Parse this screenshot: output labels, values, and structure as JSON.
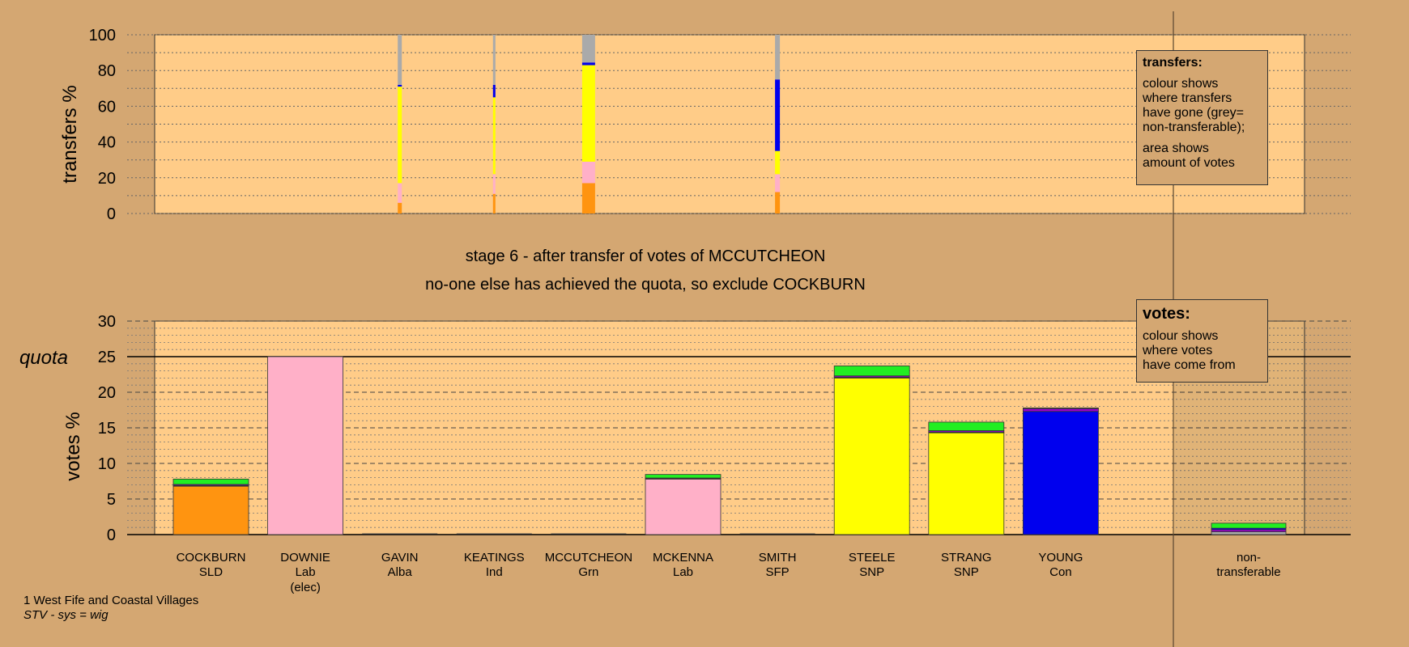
{
  "colors": {
    "background": "#d4a772",
    "plot_bg": "#ffcc88",
    "SLD": "#ff9410",
    "Lab": "#ffb0c8",
    "SNP": "#ffff00",
    "Con": "#0000ee",
    "Alba": "#22ee22",
    "Ind": "#9900cc",
    "nontransferable": "#aaaaaa"
  },
  "top_axis": {
    "title": "transfers %",
    "ticks": [
      "0",
      "20",
      "40",
      "60",
      "80",
      "100"
    ]
  },
  "bottom_axis": {
    "title": "votes %",
    "quota_label": "quota",
    "ticks": [
      "0",
      "5",
      "10",
      "15",
      "20",
      "25",
      "30"
    ]
  },
  "stage": {
    "line1": "stage 6 - after transfer of votes of MCCUTCHEON",
    "line2": "no-one else has achieved the quota, so exclude COCKBURN"
  },
  "legend_transfers": {
    "title": "transfers:",
    "lines": [
      "colour shows",
      "where transfers",
      "have gone (grey=",
      "non-transferable);"
    ],
    "lines2": [
      "area shows",
      "amount of votes"
    ]
  },
  "legend_votes": {
    "title": "votes:",
    "lines": [
      "colour shows",
      "where votes",
      "have come from"
    ]
  },
  "footer": {
    "line1": "1 West Fife and Coastal Villages",
    "line2": "STV - sys = wig"
  },
  "chart_data": [
    {
      "type": "bar",
      "title": "transfers",
      "ylabel": "transfers %",
      "ylim": [
        0,
        100
      ],
      "grid": true,
      "bars": [
        {
          "x": "GAVIN",
          "segments": [
            {
              "party": "SLD",
              "value": 6
            },
            {
              "party": "Lab",
              "value": 11
            },
            {
              "party": "SNP",
              "value": 54
            },
            {
              "party": "Con",
              "value": 1
            },
            {
              "party": "nontransferable",
              "value": 28
            }
          ]
        },
        {
          "x": "KEATINGS",
          "segments": [
            {
              "party": "SLD",
              "value": 11
            },
            {
              "party": "Lab",
              "value": 11
            },
            {
              "party": "SNP",
              "value": 43
            },
            {
              "party": "Con",
              "value": 7
            },
            {
              "party": "nontransferable",
              "value": 28
            }
          ]
        },
        {
          "x": "MCCUTCHEON",
          "segments": [
            {
              "party": "SLD",
              "value": 17
            },
            {
              "party": "Lab",
              "value": 12
            },
            {
              "party": "SNP",
              "value": 54
            },
            {
              "party": "Con",
              "value": 1.5
            },
            {
              "party": "nontransferable",
              "value": 15.5
            }
          ]
        },
        {
          "x": "SMITH",
          "segments": [
            {
              "party": "SLD",
              "value": 12
            },
            {
              "party": "Lab",
              "value": 10
            },
            {
              "party": "SNP",
              "value": 13
            },
            {
              "party": "Con",
              "value": 40
            },
            {
              "party": "nontransferable",
              "value": 25
            }
          ]
        }
      ]
    },
    {
      "type": "bar",
      "title": "votes",
      "ylabel": "votes %",
      "ylim": [
        0,
        30
      ],
      "quota": 25,
      "grid": true,
      "categories": [
        "COCKBURN",
        "DOWNIE",
        "GAVIN",
        "KEATINGS",
        "MCCUTCHEON",
        "MCKENNA",
        "SMITH",
        "STEELE",
        "STRANG",
        "YOUNG",
        "non-transferable"
      ],
      "candidates": [
        {
          "name": "COCKBURN",
          "party": "SLD",
          "extra": "",
          "segments": [
            {
              "party": "SLD",
              "value": 6.8
            },
            {
              "party": "Con",
              "value": 0.1
            },
            {
              "party": "Ind",
              "value": 0.15
            },
            {
              "party": "Alba",
              "value": 0.75
            }
          ]
        },
        {
          "name": "DOWNIE",
          "party": "Lab",
          "extra": "(elec)",
          "segments": [
            {
              "party": "Lab",
              "value": 25.0
            }
          ]
        },
        {
          "name": "GAVIN",
          "party": "Alba",
          "extra": "",
          "segments": []
        },
        {
          "name": "KEATINGS",
          "party": "Ind",
          "extra": "",
          "segments": []
        },
        {
          "name": "MCCUTCHEON",
          "party": "Grn",
          "extra": "",
          "segments": []
        },
        {
          "name": "MCKENNA",
          "party": "Lab",
          "extra": "",
          "segments": [
            {
              "party": "Lab",
              "value": 7.8
            },
            {
              "party": "Con",
              "value": 0.05
            },
            {
              "party": "Ind",
              "value": 0.1
            },
            {
              "party": "Alba",
              "value": 0.5
            }
          ]
        },
        {
          "name": "SMITH",
          "party": "SFP",
          "extra": "",
          "segments": []
        },
        {
          "name": "STEELE",
          "party": "SNP",
          "extra": "",
          "segments": [
            {
              "party": "SNP",
              "value": 22.0
            },
            {
              "party": "Con",
              "value": 0.1
            },
            {
              "party": "Ind",
              "value": 0.2
            },
            {
              "party": "Alba",
              "value": 1.4
            }
          ]
        },
        {
          "name": "STRANG",
          "party": "SNP",
          "extra": "",
          "segments": [
            {
              "party": "SNP",
              "value": 14.3
            },
            {
              "party": "Con",
              "value": 0.1
            },
            {
              "party": "Ind",
              "value": 0.2
            },
            {
              "party": "Alba",
              "value": 1.2
            }
          ]
        },
        {
          "name": "YOUNG",
          "party": "Con",
          "extra": "",
          "segments": [
            {
              "party": "Con",
              "value": 17.3
            },
            {
              "party": "Ind",
              "value": 0.4
            },
            {
              "party": "Alba",
              "value": 0.1
            }
          ]
        },
        {
          "name": "non-",
          "party": "transferable",
          "extra": "",
          "segments": [
            {
              "party": "nontransferable",
              "value": 0.4
            },
            {
              "party": "Ind",
              "value": 0.3
            },
            {
              "party": "Con",
              "value": 0.2
            },
            {
              "party": "Alba",
              "value": 0.7
            }
          ]
        }
      ]
    }
  ]
}
